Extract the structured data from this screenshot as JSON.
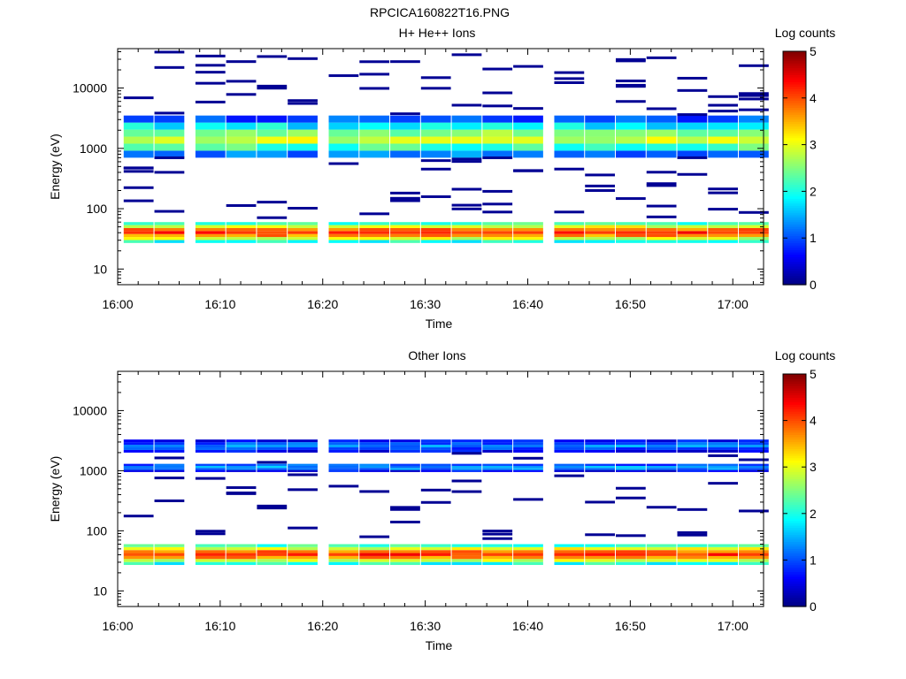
{
  "figure_title": "RPCICA160822T16.PNG",
  "chart_data": [
    {
      "type": "heatmap",
      "title": "H+ He++ Ions",
      "xlabel": "Time",
      "ylabel": "Energy (eV)",
      "x_ticks": [
        "16:00",
        "16:10",
        "16:20",
        "16:30",
        "16:40",
        "16:50",
        "17:00"
      ],
      "x_range": [
        "16:00",
        "17:03"
      ],
      "y_scale": "log",
      "y_ticks": [
        "10",
        "100",
        "1000",
        "10000"
      ],
      "y_range": [
        5.5,
        45000
      ],
      "colorbar": {
        "label": "Log counts",
        "range": [
          0,
          5
        ],
        "ticks": [
          "0",
          "1",
          "2",
          "3",
          "4",
          "5"
        ]
      },
      "time_bins": [
        "16:02",
        "16:05",
        "16:09",
        "16:12",
        "16:15",
        "16:18",
        "16:22",
        "16:25",
        "16:28",
        "16:31",
        "16:34",
        "16:37",
        "16:40",
        "16:44",
        "16:47",
        "16:50",
        "16:53",
        "16:56",
        "16:59",
        "17:02"
      ],
      "bands": [
        {
          "energy_range_eV": [
            27,
            60
          ],
          "log_counts_profile": [
            2.0,
            2.9,
            3.7,
            4.2,
            3.8,
            3.0,
            2.2
          ],
          "description_values": "low-energy band peak ~4.2 near 40 eV"
        },
        {
          "energy_range_eV": [
            700,
            3500
          ],
          "log_counts_profile": [
            1.2,
            2.2,
            2.9,
            2.6,
            1.8,
            1.0
          ],
          "description_values": "mid-energy band peak ~3 near 1100 eV"
        }
      ],
      "background_level": "sporadic single counts (log ~0.2) up to 40000 eV"
    },
    {
      "type": "heatmap",
      "title": "Other Ions",
      "xlabel": "Time",
      "ylabel": "Energy (eV)",
      "x_ticks": [
        "16:00",
        "16:10",
        "16:20",
        "16:30",
        "16:40",
        "16:50",
        "17:00"
      ],
      "x_range": [
        "16:00",
        "17:03"
      ],
      "y_scale": "log",
      "y_ticks": [
        "10",
        "100",
        "1000",
        "10000"
      ],
      "y_range": [
        5.5,
        45000
      ],
      "colorbar": {
        "label": "Log counts",
        "range": [
          0,
          5
        ],
        "ticks": [
          "0",
          "1",
          "2",
          "3",
          "4",
          "5"
        ]
      },
      "time_bins": [
        "16:02",
        "16:05",
        "16:09",
        "16:12",
        "16:15",
        "16:18",
        "16:22",
        "16:25",
        "16:28",
        "16:31",
        "16:34",
        "16:37",
        "16:40",
        "16:44",
        "16:47",
        "16:50",
        "16:53",
        "16:56",
        "16:59",
        "17:02"
      ],
      "bands": [
        {
          "energy_range_eV": [
            27,
            60
          ],
          "log_counts_profile": [
            2.0,
            2.9,
            3.7,
            4.2,
            3.8,
            3.0,
            2.2
          ]
        },
        {
          "energy_range_eV": [
            2000,
            3300
          ],
          "log_counts_profile": [
            0.6,
            1.0,
            1.3,
            1.0,
            0.6
          ]
        },
        {
          "energy_range_eV": [
            950,
            1300
          ],
          "log_counts_profile": [
            0.6,
            1.2,
            1.4,
            1.0
          ]
        }
      ],
      "background_level": "sporadic single counts (log ~0.2) up to 4000 eV"
    }
  ]
}
